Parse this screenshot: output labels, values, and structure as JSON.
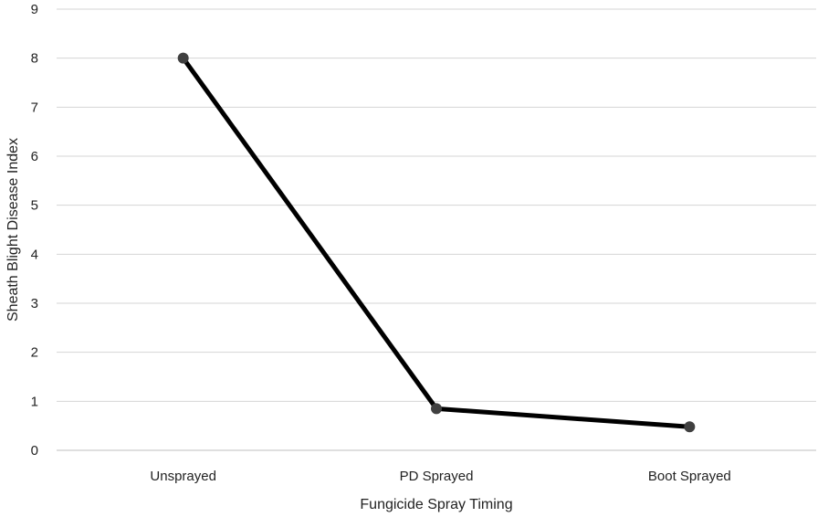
{
  "chart_data": {
    "type": "line",
    "title": "",
    "xlabel": "Fungicide Spray Timing",
    "ylabel": "Sheath Blight Disease Index",
    "categories": [
      "Unsprayed",
      "PD Sprayed",
      "Boot Sprayed"
    ],
    "series": [
      {
        "values": [
          8.0,
          0.85,
          0.48
        ]
      }
    ],
    "ylim": [
      0,
      9
    ],
    "yticks": [
      "0",
      "1",
      "2",
      "3",
      "4",
      "5",
      "6",
      "7",
      "8",
      "9"
    ],
    "grid": true,
    "legend": "none",
    "colors": {
      "line": "#000000",
      "marker": "#404040",
      "grid": "#d4d4d4",
      "text": "#222222"
    }
  }
}
